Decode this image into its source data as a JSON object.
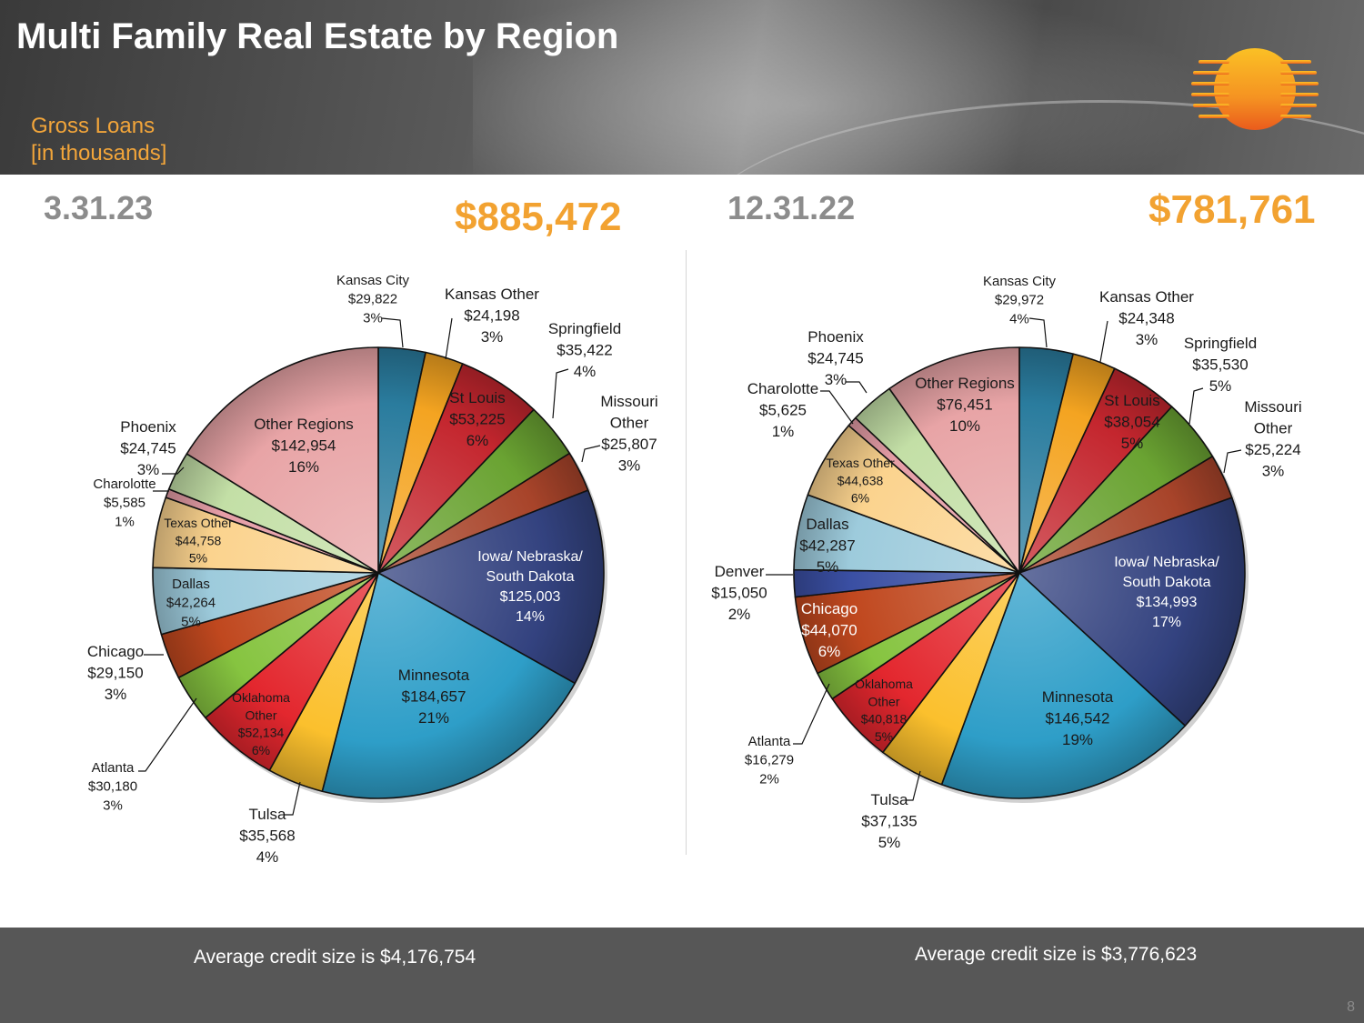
{
  "header": {
    "title": "Multi Family Real Estate by Region",
    "subtitle_line1": "Gross Loans",
    "subtitle_line2": "[in thousands]"
  },
  "left": {
    "date": "3.31.23",
    "total": "$885,472",
    "footer": "Average credit size is $4,176,754"
  },
  "right": {
    "date": "12.31.22",
    "total": "$781,761",
    "footer": "Average credit size is $3,776,623"
  },
  "page_number": "8",
  "colors": {
    "header_accent": "#f2a53a",
    "total": "#f2a231",
    "date": "#8c8c8c",
    "footer_bg": "#575757"
  },
  "chart_data": [
    {
      "type": "pie",
      "title": "3.31.23",
      "start_angle_deg": 0,
      "direction": "clockwise",
      "slices": [
        {
          "name": "Kansas City",
          "value": 29822,
          "value_label": "$29,822",
          "pct": "3%",
          "color": "#2a7c9e"
        },
        {
          "name": "Kansas Other",
          "value": 24198,
          "value_label": "$24,198",
          "pct": "3%",
          "color": "#f4a421"
        },
        {
          "name": "St Louis",
          "value": 53225,
          "value_label": "$53,225",
          "pct": "6%",
          "color": "#c4262e"
        },
        {
          "name": "Springfield",
          "value": 35422,
          "value_label": "$35,422",
          "pct": "4%",
          "color": "#6aa332"
        },
        {
          "name": "Missouri Other",
          "value": 25807,
          "value_label": "$25,807",
          "pct": "3%",
          "color": "#a8442a"
        },
        {
          "name": "Iowa/ Nebraska/ South Dakota",
          "value": 125003,
          "value_label": "$125,003",
          "pct": "14%",
          "color": "#33427f"
        },
        {
          "name": "Minnesota",
          "value": 184657,
          "value_label": "$184,657",
          "pct": "21%",
          "color": "#2e9ec8"
        },
        {
          "name": "Tulsa",
          "value": 35568,
          "value_label": "$35,568",
          "pct": "4%",
          "color": "#fbc02d"
        },
        {
          "name": "Oklahoma Other",
          "value": 52134,
          "value_label": "$52,134",
          "pct": "6%",
          "color": "#e3272e"
        },
        {
          "name": "Atlanta",
          "value": 30180,
          "value_label": "$30,180",
          "pct": "3%",
          "color": "#86c440"
        },
        {
          "name": "Chicago",
          "value": 29150,
          "value_label": "$29,150",
          "pct": "3%",
          "color": "#c0481f"
        },
        {
          "name": "Dallas",
          "value": 42264,
          "value_label": "$42,264",
          "pct": "5%",
          "color": "#9dcbdc"
        },
        {
          "name": "Texas Other",
          "value": 44758,
          "value_label": "$44,758",
          "pct": "5%",
          "color": "#fbd38e"
        },
        {
          "name": "Charolotte",
          "value": 5585,
          "value_label": "$5,585",
          "pct": "1%",
          "color": "#e59da6"
        },
        {
          "name": "Phoenix",
          "value": 24745,
          "value_label": "$24,745",
          "pct": "3%",
          "color": "#c3dfa6"
        },
        {
          "name": "Other Regions",
          "value": 142954,
          "value_label": "$142,954",
          "pct": "16%",
          "color": "#e8a4a6"
        }
      ]
    },
    {
      "type": "pie",
      "title": "12.31.22",
      "start_angle_deg": 0,
      "direction": "clockwise",
      "slices": [
        {
          "name": "Kansas City",
          "value": 29972,
          "value_label": "$29,972",
          "pct": "4%",
          "color": "#2a7c9e"
        },
        {
          "name": "Kansas Other",
          "value": 24348,
          "value_label": "$24,348",
          "pct": "3%",
          "color": "#f4a421"
        },
        {
          "name": "St Louis",
          "value": 38054,
          "value_label": "$38,054",
          "pct": "5%",
          "color": "#c4262e"
        },
        {
          "name": "Springfield",
          "value": 35530,
          "value_label": "$35,530",
          "pct": "5%",
          "color": "#6aa332"
        },
        {
          "name": "Missouri Other",
          "value": 25224,
          "value_label": "$25,224",
          "pct": "3%",
          "color": "#a8442a"
        },
        {
          "name": "Iowa/ Nebraska/ South Dakota",
          "value": 134993,
          "value_label": "$134,993",
          "pct": "17%",
          "color": "#33427f"
        },
        {
          "name": "Minnesota",
          "value": 146542,
          "value_label": "$146,542",
          "pct": "19%",
          "color": "#2e9ec8"
        },
        {
          "name": "Tulsa",
          "value": 37135,
          "value_label": "$37,135",
          "pct": "5%",
          "color": "#fbc02d"
        },
        {
          "name": "Oklahoma Other",
          "value": 40818,
          "value_label": "$40,818",
          "pct": "5%",
          "color": "#e3272e"
        },
        {
          "name": "Atlanta",
          "value": 16279,
          "value_label": "$16,279",
          "pct": "2%",
          "color": "#86c440"
        },
        {
          "name": "Chicago",
          "value": 44070,
          "value_label": "$44,070",
          "pct": "6%",
          "color": "#c0481f"
        },
        {
          "name": "Denver",
          "value": 15050,
          "value_label": "$15,050",
          "pct": "2%",
          "color": "#3a4fa3"
        },
        {
          "name": "Dallas",
          "value": 42287,
          "value_label": "$42,287",
          "pct": "5%",
          "color": "#9dcbdc"
        },
        {
          "name": "Texas Other",
          "value": 44638,
          "value_label": "$44,638",
          "pct": "6%",
          "color": "#fbd38e"
        },
        {
          "name": "Charolotte",
          "value": 5625,
          "value_label": "$5,625",
          "pct": "1%",
          "color": "#e59da6"
        },
        {
          "name": "Phoenix",
          "value": 24745,
          "value_label": "$24,745",
          "pct": "3%",
          "color": "#c3dfa6"
        },
        {
          "name": "Other Regions",
          "value": 76451,
          "value_label": "$76,451",
          "pct": "10%",
          "color": "#e8a4a6"
        }
      ]
    }
  ]
}
